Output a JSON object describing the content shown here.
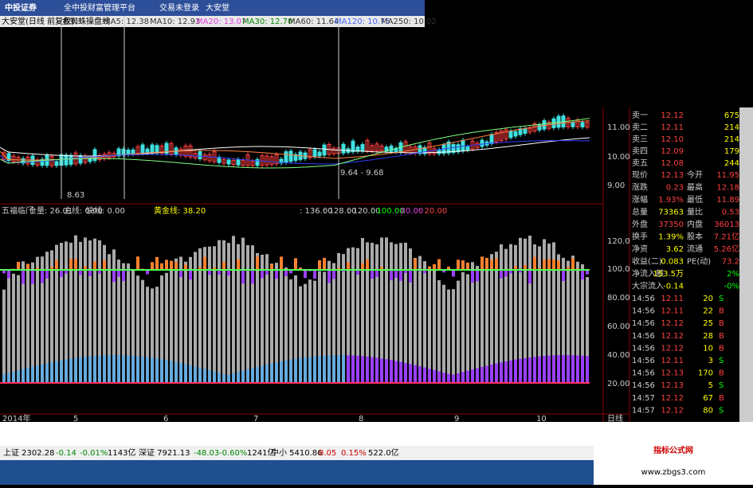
{
  "top_bar": {
    "logo": "中投证券",
    "platform": "全中投财富管理平台",
    "login": "交易未登录",
    "stock": "大安堂"
  },
  "price_panel": {
    "title": "大安堂(日线 前复权)",
    "indicator": "金蜘蛛操盘线",
    "ma": [
      "MA5: 12.38",
      "MA10: 12.93",
      "MA20: 13.07",
      "MA30: 12.70",
      "MA60: 11.64",
      "MA120: 10.75",
      "MA250: 10.02"
    ],
    "axis": [
      "11.00",
      "10.00",
      "9.00"
    ],
    "low_label": "8.63",
    "range_label": "9.64 - 9.68"
  },
  "indicator_panel": {
    "title": "五福临门",
    "items": [
      "仓量: 26.01",
      "主线: 0.00",
      "快线: 0.00",
      "黄金线: 38.20"
    ],
    "levels": [
      ": 136.00",
      ": 128.00",
      ": 120.00",
      ": 100.00",
      ": 80.00",
      ": 20.00"
    ],
    "axis": [
      "120.0",
      "100.0",
      "80.00",
      "60.00",
      "40.00",
      "20.00"
    ]
  },
  "x_axis": {
    "labels": [
      "2014年",
      "5",
      "6",
      "7",
      "8",
      "9",
      "10"
    ],
    "period": "日线"
  },
  "order_book": [
    [
      "卖一",
      "12.12",
      "675"
    ],
    [
      "卖二",
      "12.11",
      "214"
    ],
    [
      "卖三",
      "12.10",
      "214"
    ],
    [
      "卖四",
      "12.09",
      "179"
    ],
    [
      "卖五",
      "12.08",
      "244"
    ]
  ],
  "quote": [
    [
      "现价",
      "12.13",
      "今开",
      "11.95"
    ],
    [
      "涨跌",
      "0.23",
      "最高",
      "12.18"
    ],
    [
      "涨幅",
      "1.93%",
      "最低",
      "11.89"
    ],
    [
      "总量",
      "73363",
      "量比",
      "0.53"
    ],
    [
      "外盘",
      "37350",
      "内盘",
      "36013"
    ],
    [
      "换手",
      "1.39%",
      "股本",
      "7.21亿"
    ],
    [
      "净资",
      "3.62",
      "流通",
      "5.26亿"
    ],
    [
      "收益(二)",
      "0.083",
      "PE(动)",
      "73.2"
    ],
    [
      "净流入额",
      "153.5万",
      "2%"
    ],
    [
      "大宗流入",
      "-0.14",
      "-0%"
    ]
  ],
  "ticks": [
    [
      "14:56",
      "12.11",
      "20",
      "S"
    ],
    [
      "14:56",
      "12.11",
      "22",
      "B"
    ],
    [
      "14:56",
      "12.12",
      "25",
      "B"
    ],
    [
      "14:56",
      "12.12",
      "28",
      "B"
    ],
    [
      "14:56",
      "12.12",
      "10",
      "B"
    ],
    [
      "14:56",
      "12.11",
      "3",
      "S"
    ],
    [
      "14:56",
      "12.13",
      "170",
      "B"
    ],
    [
      "14:56",
      "12.13",
      "5",
      "S"
    ],
    [
      "14:57",
      "12.12",
      "67",
      "B"
    ],
    [
      "14:57",
      "12.12",
      "80",
      "S"
    ]
  ],
  "status_bar": {
    "sh": "上证 2302.28",
    "sh_chg": "-0.14",
    "sh_pct": "-0.01%",
    "sh_amt": "1143亿",
    "sz": "深证 7921.13",
    "sz_chg": "-48.03",
    "sz_pct": "-0.60%",
    "sz_amt": "1241亿",
    "zx": "中小 5410.86",
    "zx_chg": "8.05",
    "zx_pct": "0.15%",
    "zx_amt": "522.0亿"
  },
  "watermark": {
    "title": "指标公式网",
    "url": "www.zbgs3.com"
  }
}
